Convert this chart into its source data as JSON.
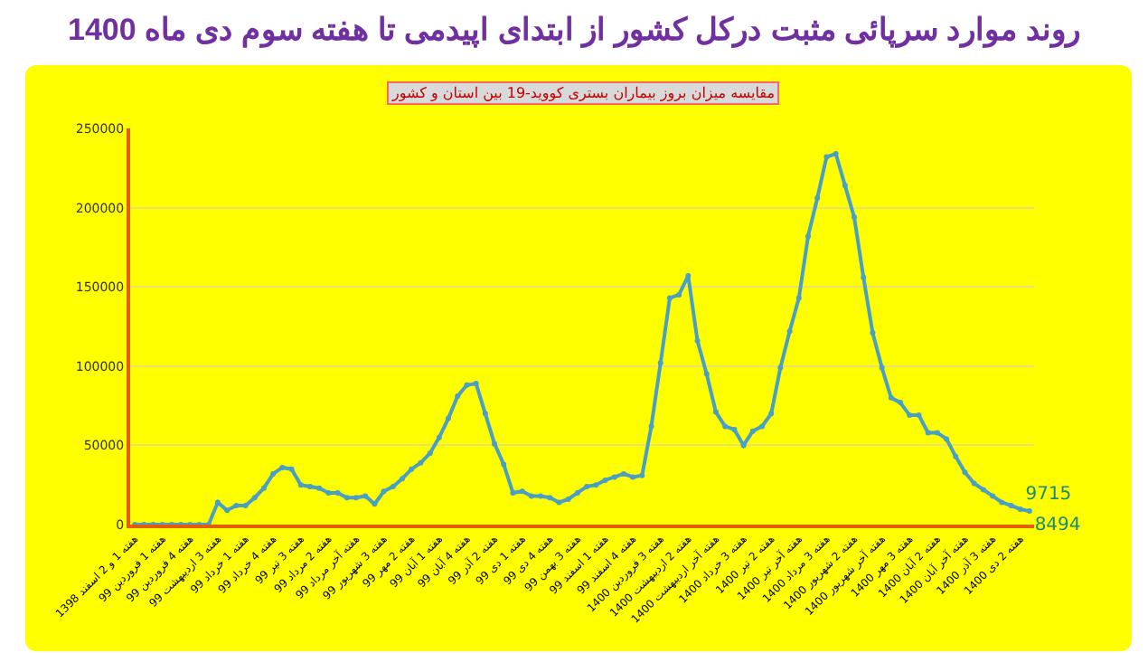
{
  "chart_data": {
    "type": "line",
    "title": "روند موارد سرپائی مثبت درکل کشور از ابتدای اپیدمی تا هفته سوم دی ماه 1400",
    "subtitle": "مقایسه میزان بروز بیماران بستری کووید-19 بین استان و کشور",
    "categories": [
      "هفته 1 و 2 اسفند 1398",
      null,
      null,
      "هفته 1 فروردین 99",
      null,
      null,
      "هفته 4 فروردین 99",
      null,
      null,
      "هفته 3 اردیبهشت 99",
      null,
      null,
      "هفته 1 خرداد 99",
      null,
      null,
      "هفته 4 خرداد 99",
      null,
      null,
      "هفته 3 تیر 99",
      null,
      null,
      "هفته 2 مرداد 99",
      null,
      null,
      "هفته آخر مرداد 99",
      null,
      null,
      "هفته 3 شهریور 99",
      null,
      null,
      "هفته 2 مهر 99",
      null,
      null,
      "هفته 1 آبان 99",
      null,
      null,
      "هفته 4 آبان 99",
      null,
      null,
      "هفته 2 آذر 99",
      null,
      null,
      "هفته 1 دی 99",
      null,
      null,
      "هفته 4 دی 99",
      null,
      null,
      "هفته 3 بهمن 99",
      null,
      null,
      "هفته 1 اسفند 99",
      null,
      null,
      "هفته 4 اسفند 99",
      null,
      null,
      "هفته 3 فروردین 1400",
      null,
      null,
      "هفته 2 اردیبهشت 1400",
      null,
      null,
      "هفته آخر اردیبهشت 1400",
      null,
      null,
      "هفته 3 خرداد 1400",
      null,
      null,
      "هفته 2 تیر 1400",
      null,
      null,
      "هفته آخر تیر 1400",
      null,
      null,
      "هفته 3 مرداد 1400",
      null,
      null,
      "هفته 2 شهریور 1400",
      null,
      null,
      "هفته آخر شهریور 1400",
      null,
      null,
      "هفته 3 مهر 1400",
      null,
      null,
      "هفته 2 آبان 1400",
      null,
      null,
      "هفته آخر آبان 1400",
      null,
      null,
      "هفته 3 آذر 1400",
      null,
      null,
      "هفته 2 دی 1400",
      null
    ],
    "series": [
      {
        "color": "#4a9fc4",
        "values": [
          0,
          0,
          0,
          0,
          0,
          0,
          0,
          0,
          0,
          14000,
          9000,
          12000,
          12000,
          17000,
          23000,
          32000,
          36000,
          35000,
          25000,
          24000,
          23000,
          20000,
          20000,
          17000,
          17000,
          18000,
          13000,
          21000,
          24000,
          29000,
          35000,
          39000,
          45000,
          55000,
          67000,
          81000,
          88000,
          89000,
          70000,
          51000,
          38000,
          20000,
          21000,
          18000,
          18000,
          17000,
          14000,
          16000,
          20000,
          24000,
          25000,
          28000,
          30000,
          32000,
          30000,
          31000,
          62000,
          102000,
          143000,
          145000,
          157000,
          116000,
          95000,
          71000,
          62000,
          60000,
          50000,
          59000,
          62000,
          70000,
          99000,
          122000,
          143000,
          182000,
          206000,
          232000,
          234000,
          214000,
          194000,
          156000,
          121000,
          99000,
          80000,
          77000,
          69000,
          69000,
          58000,
          58000,
          54000,
          43000,
          33000,
          26000,
          22000,
          18000,
          14000,
          12000,
          9715,
          8494
        ],
        "value_labels": [
          null,
          null,
          null,
          null,
          null,
          null,
          null,
          null,
          null,
          null,
          null,
          null,
          null,
          null,
          null,
          null,
          null,
          null,
          null,
          null,
          null,
          null,
          null,
          null,
          null,
          null,
          null,
          null,
          null,
          null,
          null,
          null,
          null,
          null,
          null,
          null,
          null,
          null,
          null,
          null,
          null,
          null,
          null,
          null,
          null,
          null,
          null,
          null,
          null,
          null,
          null,
          null,
          null,
          null,
          null,
          null,
          null,
          null,
          null,
          null,
          null,
          null,
          null,
          null,
          null,
          null,
          null,
          null,
          null,
          null,
          null,
          null,
          null,
          null,
          null,
          null,
          null,
          null,
          null,
          null,
          null,
          null,
          null,
          null,
          null,
          null,
          null,
          null,
          null,
          null,
          null,
          null,
          null,
          null,
          null,
          null,
          "9715",
          "8494"
        ]
      }
    ],
    "ylim": [
      0,
      250000
    ],
    "yticks": [
      0,
      50000,
      100000,
      150000,
      200000,
      250000
    ],
    "grid": "y",
    "marker": "circle",
    "line_style": "solid"
  }
}
